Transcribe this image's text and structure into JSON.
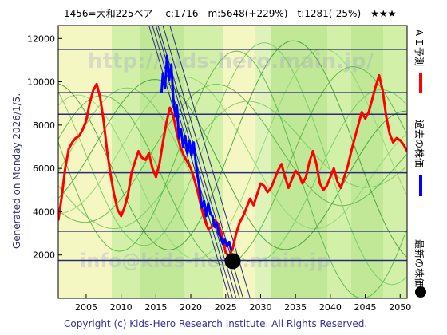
{
  "header": {
    "title": "1456=大和225ベア　 c:1716　m:5648(+229%)　t:1281(-25%)　★★★"
  },
  "side_label": "Generated on Monday 2026/1/5.",
  "copyright": "Copyright (c) Kids-Hero Research Institute. All Rights Reserved.",
  "watermarks": [
    "http://kids-hero.main.jp/",
    "info@kids-hero.main.jp"
  ],
  "legend": {
    "items": [
      {
        "label": "ＡＩ予測",
        "color": "#ff0000",
        "kind": "line"
      },
      {
        "label": "過去の株価",
        "color": "#0000ff",
        "kind": "line"
      },
      {
        "label": "最新の株価",
        "color": "#000000",
        "kind": "dot"
      }
    ]
  },
  "chart_data": {
    "type": "line",
    "title": "1456=大和225ベア　 c:1716　m:5648(+229%)　t:1281(-25%)　★★★",
    "xlim": [
      2001,
      2051
    ],
    "ylim": [
      0,
      12600
    ],
    "x_ticks": [
      2005,
      2010,
      2015,
      2020,
      2025,
      2030,
      2035,
      2040,
      2045,
      2050
    ],
    "y_ticks": [
      2000,
      4000,
      6000,
      8000,
      10000,
      12000
    ],
    "grid": false,
    "legend_position": "right-outside",
    "horizontal_levels": [
      11500,
      9500,
      8500,
      5800,
      3100,
      1750
    ],
    "trend_lines": [
      {
        "points": [
          [
            2014.0,
            12600
          ],
          [
            2025.5,
            0
          ]
        ]
      },
      {
        "points": [
          [
            2014.5,
            12600
          ],
          [
            2026.0,
            0
          ]
        ]
      },
      {
        "points": [
          [
            2015.0,
            12600
          ],
          [
            2026.5,
            0
          ]
        ]
      },
      {
        "points": [
          [
            2015.3,
            12600
          ],
          [
            2027.0,
            0
          ]
        ]
      },
      {
        "points": [
          [
            2016.0,
            12600
          ],
          [
            2027.5,
            0
          ]
        ]
      },
      {
        "points": [
          [
            2017.0,
            12600
          ],
          [
            2028.5,
            0
          ]
        ]
      }
    ],
    "series": [
      {
        "name": "ＡＩ予測",
        "color": "#ff0000",
        "points": [
          [
            2001.0,
            3600
          ],
          [
            2001.5,
            4700
          ],
          [
            2002.0,
            6000
          ],
          [
            2002.5,
            6900
          ],
          [
            2003.0,
            7200
          ],
          [
            2003.5,
            7400
          ],
          [
            2004.0,
            7500
          ],
          [
            2004.5,
            7800
          ],
          [
            2005.0,
            8200
          ],
          [
            2005.5,
            9000
          ],
          [
            2006.0,
            9600
          ],
          [
            2006.5,
            9900
          ],
          [
            2007.0,
            9300
          ],
          [
            2007.5,
            8200
          ],
          [
            2008.0,
            6800
          ],
          [
            2008.5,
            5700
          ],
          [
            2009.0,
            4800
          ],
          [
            2009.5,
            4100
          ],
          [
            2010.0,
            3800
          ],
          [
            2010.5,
            4200
          ],
          [
            2011.0,
            4800
          ],
          [
            2011.5,
            5800
          ],
          [
            2012.0,
            6300
          ],
          [
            2012.5,
            6800
          ],
          [
            2013.0,
            6500
          ],
          [
            2013.5,
            6400
          ],
          [
            2014.0,
            6700
          ],
          [
            2014.5,
            6000
          ],
          [
            2015.0,
            5600
          ],
          [
            2015.5,
            6200
          ],
          [
            2016.0,
            7200
          ],
          [
            2016.5,
            8100
          ],
          [
            2017.0,
            8800
          ],
          [
            2017.5,
            8400
          ],
          [
            2018.0,
            7600
          ],
          [
            2018.5,
            7000
          ],
          [
            2019.0,
            6600
          ],
          [
            2019.5,
            6300
          ],
          [
            2020.0,
            6000
          ],
          [
            2020.5,
            5500
          ],
          [
            2021.0,
            4900
          ],
          [
            2021.5,
            4200
          ],
          [
            2022.0,
            3600
          ],
          [
            2022.5,
            3200
          ],
          [
            2023.0,
            3300
          ],
          [
            2023.5,
            3600
          ],
          [
            2024.0,
            3400
          ],
          [
            2024.5,
            2900
          ],
          [
            2025.0,
            2100
          ],
          [
            2025.5,
            1950
          ],
          [
            2026.0,
            2300
          ],
          [
            2026.5,
            3000
          ],
          [
            2027.0,
            3500
          ],
          [
            2027.5,
            3800
          ],
          [
            2028.0,
            4200
          ],
          [
            2028.5,
            4600
          ],
          [
            2029.0,
            4300
          ],
          [
            2029.5,
            4800
          ],
          [
            2030.0,
            5300
          ],
          [
            2030.5,
            5200
          ],
          [
            2031.0,
            4900
          ],
          [
            2031.5,
            5100
          ],
          [
            2032.0,
            5500
          ],
          [
            2032.5,
            5900
          ],
          [
            2033.0,
            6200
          ],
          [
            2033.5,
            5600
          ],
          [
            2034.0,
            5100
          ],
          [
            2034.5,
            5500
          ],
          [
            2035.0,
            5900
          ],
          [
            2035.5,
            5700
          ],
          [
            2036.0,
            5300
          ],
          [
            2036.5,
            5600
          ],
          [
            2037.0,
            6300
          ],
          [
            2037.5,
            6800
          ],
          [
            2038.0,
            6200
          ],
          [
            2038.5,
            5300
          ],
          [
            2039.0,
            5000
          ],
          [
            2039.5,
            5200
          ],
          [
            2040.0,
            5600
          ],
          [
            2040.5,
            6000
          ],
          [
            2041.0,
            5400
          ],
          [
            2041.5,
            5100
          ],
          [
            2042.0,
            5600
          ],
          [
            2042.5,
            6100
          ],
          [
            2043.0,
            6800
          ],
          [
            2043.5,
            7400
          ],
          [
            2044.0,
            8000
          ],
          [
            2044.5,
            8600
          ],
          [
            2045.0,
            8300
          ],
          [
            2045.5,
            8600
          ],
          [
            2046.0,
            9200
          ],
          [
            2046.5,
            9800
          ],
          [
            2047.0,
            10300
          ],
          [
            2047.5,
            9600
          ],
          [
            2048.0,
            8400
          ],
          [
            2048.5,
            7600
          ],
          [
            2049.0,
            7200
          ],
          [
            2049.5,
            7400
          ],
          [
            2050.0,
            7300
          ],
          [
            2050.5,
            7100
          ],
          [
            2051.0,
            6800
          ]
        ]
      },
      {
        "name": "過去の株価",
        "color": "#0000ff",
        "points": [
          [
            2015.8,
            9500
          ],
          [
            2016.0,
            10400
          ],
          [
            2016.3,
            9700
          ],
          [
            2016.6,
            11200
          ],
          [
            2016.9,
            10100
          ],
          [
            2017.2,
            10800
          ],
          [
            2017.5,
            9200
          ],
          [
            2017.8,
            8400
          ],
          [
            2018.0,
            8900
          ],
          [
            2018.3,
            7400
          ],
          [
            2018.6,
            7800
          ],
          [
            2018.9,
            7000
          ],
          [
            2019.2,
            7500
          ],
          [
            2019.5,
            6700
          ],
          [
            2019.8,
            7300
          ],
          [
            2020.1,
            6600
          ],
          [
            2020.4,
            7200
          ],
          [
            2020.7,
            6300
          ],
          [
            2021.0,
            5600
          ],
          [
            2021.3,
            4900
          ],
          [
            2021.6,
            4200
          ],
          [
            2021.9,
            4500
          ],
          [
            2022.2,
            3800
          ],
          [
            2022.5,
            4400
          ],
          [
            2022.8,
            3900
          ],
          [
            2023.1,
            3800
          ],
          [
            2023.4,
            3300
          ],
          [
            2023.7,
            3500
          ],
          [
            2024.0,
            3000
          ],
          [
            2024.3,
            2800
          ],
          [
            2024.6,
            2500
          ],
          [
            2024.9,
            2700
          ],
          [
            2025.2,
            2400
          ],
          [
            2025.5,
            2600
          ],
          [
            2025.8,
            2200
          ]
        ]
      }
    ],
    "latest_point": {
      "x": 2026.0,
      "y": 1716
    }
  }
}
